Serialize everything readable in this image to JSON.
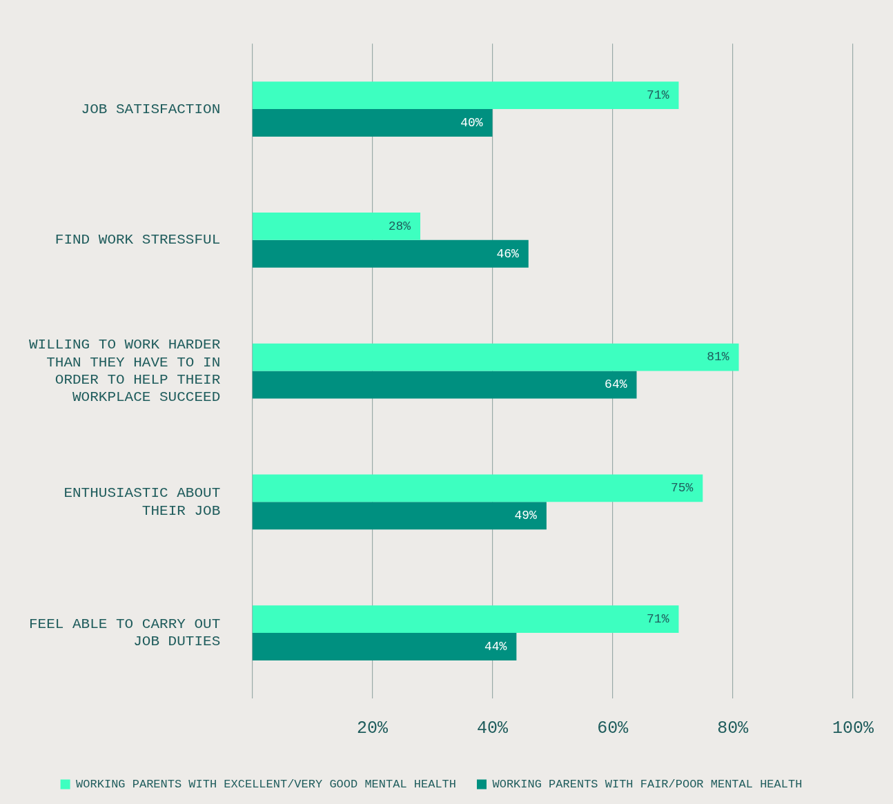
{
  "chart_data": {
    "type": "bar",
    "orientation": "horizontal",
    "categories": [
      "JOB SATISFACTION",
      "FIND WORK STRESSFUL",
      "WILLING TO WORK HARDER THAN THEY HAVE TO IN ORDER TO HELP THEIR WORKPLACE SUCCEED",
      "ENTHUSIASTIC ABOUT THEIR JOB",
      "FEEL ABLE TO CARRY OUT JOB DUTIES"
    ],
    "series": [
      {
        "name": "WORKING PARENTS WITH EXCELLENT/VERY GOOD MENTAL HEALTH",
        "color": "#3dffc0",
        "values": [
          71,
          28,
          81,
          75,
          71
        ],
        "value_labels": [
          "71%",
          "28%",
          "81%",
          "75%",
          "71%"
        ]
      },
      {
        "name": "WORKING PARENTS WITH FAIR/POOR MENTAL HEALTH",
        "color": "#009080",
        "values": [
          40,
          46,
          64,
          49,
          44
        ],
        "value_labels": [
          "40%",
          "46%",
          "64%",
          "49%",
          "44%"
        ]
      }
    ],
    "xlim": [
      0,
      100
    ],
    "xticks": [
      {
        "value": 0,
        "label": null
      },
      {
        "value": 20,
        "label": "20%"
      },
      {
        "value": 40,
        "label": "40%"
      },
      {
        "value": 60,
        "label": "60%"
      },
      {
        "value": 80,
        "label": "80%"
      },
      {
        "value": 100,
        "label": "100%"
      }
    ],
    "grid": "x",
    "legend": "bottom"
  }
}
